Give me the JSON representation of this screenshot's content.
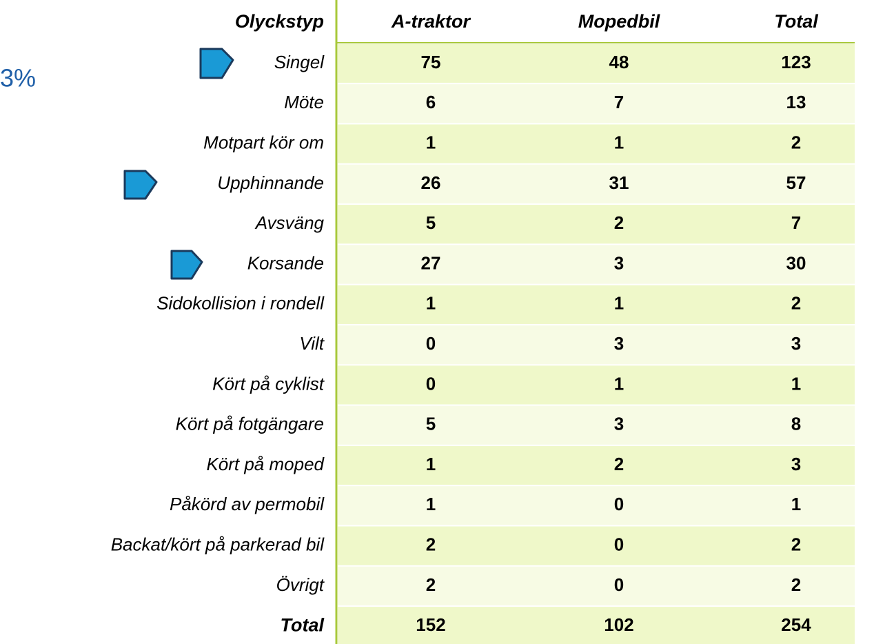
{
  "fragment": "3%",
  "table": {
    "header": [
      "Olyckstyp",
      "A-traktor",
      "Mopedbil",
      "Total"
    ],
    "rows": [
      [
        "Singel",
        75,
        48,
        123
      ],
      [
        "Möte",
        6,
        7,
        13
      ],
      [
        "Motpart kör om",
        1,
        1,
        2
      ],
      [
        "Upphinnande",
        26,
        31,
        57
      ],
      [
        "Avsväng",
        5,
        2,
        7
      ],
      [
        "Korsande",
        27,
        3,
        30
      ],
      [
        "Sidokollision i rondell",
        1,
        1,
        2
      ],
      [
        "Vilt",
        0,
        3,
        3
      ],
      [
        "Kört på cyklist",
        0,
        1,
        1
      ],
      [
        "Kört på fotgängare",
        5,
        3,
        8
      ],
      [
        "Kört på moped",
        1,
        2,
        3
      ],
      [
        "Påkörd av permobil",
        1,
        0,
        1
      ],
      [
        "Backat/kört på parkerad bil",
        2,
        0,
        2
      ],
      [
        "Övrigt",
        2,
        0,
        2
      ]
    ],
    "total": [
      "Total",
      152,
      102,
      254
    ]
  }
}
